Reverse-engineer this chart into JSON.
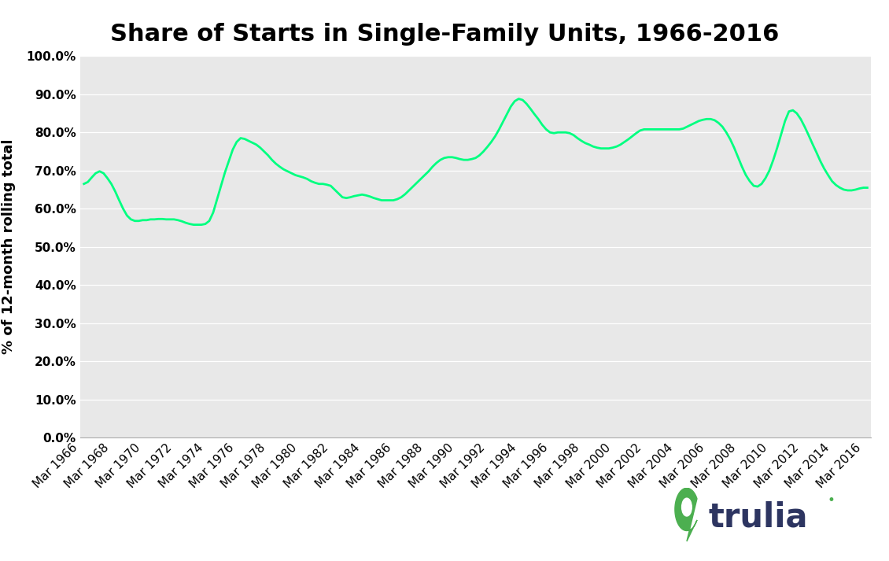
{
  "title": "Share of Starts in Single-Family Units, 1966-2016",
  "ylabel": "% of 12-month rolling total",
  "line_color": "#00ff80",
  "line_width": 2.0,
  "background_color": "#e8e8e8",
  "outer_background": "#ffffff",
  "ylim": [
    0.0,
    1.0
  ],
  "ytick_values": [
    0.0,
    0.1,
    0.2,
    0.3,
    0.4,
    0.5,
    0.6,
    0.7,
    0.8,
    0.9,
    1.0
  ],
  "xtick_years": [
    1966,
    1968,
    1970,
    1972,
    1974,
    1976,
    1978,
    1980,
    1982,
    1984,
    1986,
    1988,
    1990,
    1992,
    1994,
    1996,
    1998,
    2000,
    2002,
    2004,
    2006,
    2008,
    2010,
    2012,
    2014,
    2016
  ],
  "title_fontsize": 22,
  "axis_label_fontsize": 13,
  "tick_fontsize": 11,
  "trulia_text": "trulia",
  "trulia_text_color": "#2d3561",
  "trulia_icon_color": "#4caf50",
  "data_years": [
    1966.25,
    1966.5,
    1966.75,
    1967.0,
    1967.25,
    1967.5,
    1967.75,
    1968.0,
    1968.25,
    1968.5,
    1968.75,
    1969.0,
    1969.25,
    1969.5,
    1969.75,
    1970.0,
    1970.25,
    1970.5,
    1970.75,
    1971.0,
    1971.25,
    1971.5,
    1971.75,
    1972.0,
    1972.25,
    1972.5,
    1972.75,
    1973.0,
    1973.25,
    1973.5,
    1973.75,
    1974.0,
    1974.25,
    1974.5,
    1974.75,
    1975.0,
    1975.25,
    1975.5,
    1975.75,
    1976.0,
    1976.25,
    1976.5,
    1976.75,
    1977.0,
    1977.25,
    1977.5,
    1977.75,
    1978.0,
    1978.25,
    1978.5,
    1978.75,
    1979.0,
    1979.25,
    1979.5,
    1979.75,
    1980.0,
    1980.25,
    1980.5,
    1980.75,
    1981.0,
    1981.25,
    1981.5,
    1981.75,
    1982.0,
    1982.25,
    1982.5,
    1982.75,
    1983.0,
    1983.25,
    1983.5,
    1983.75,
    1984.0,
    1984.25,
    1984.5,
    1984.75,
    1985.0,
    1985.25,
    1985.5,
    1985.75,
    1986.0,
    1986.25,
    1986.5,
    1986.75,
    1987.0,
    1987.25,
    1987.5,
    1987.75,
    1988.0,
    1988.25,
    1988.5,
    1988.75,
    1989.0,
    1989.25,
    1989.5,
    1989.75,
    1990.0,
    1990.25,
    1990.5,
    1990.75,
    1991.0,
    1991.25,
    1991.5,
    1991.75,
    1992.0,
    1992.25,
    1992.5,
    1992.75,
    1993.0,
    1993.25,
    1993.5,
    1993.75,
    1994.0,
    1994.25,
    1994.5,
    1994.75,
    1995.0,
    1995.25,
    1995.5,
    1995.75,
    1996.0,
    1996.25,
    1996.5,
    1996.75,
    1997.0,
    1997.25,
    1997.5,
    1997.75,
    1998.0,
    1998.25,
    1998.5,
    1998.75,
    1999.0,
    1999.25,
    1999.5,
    1999.75,
    2000.0,
    2000.25,
    2000.5,
    2000.75,
    2001.0,
    2001.25,
    2001.5,
    2001.75,
    2002.0,
    2002.25,
    2002.5,
    2002.75,
    2003.0,
    2003.25,
    2003.5,
    2003.75,
    2004.0,
    2004.25,
    2004.5,
    2004.75,
    2005.0,
    2005.25,
    2005.5,
    2005.75,
    2006.0,
    2006.25,
    2006.5,
    2006.75,
    2007.0,
    2007.25,
    2007.5,
    2007.75,
    2008.0,
    2008.25,
    2008.5,
    2008.75,
    2009.0,
    2009.25,
    2009.5,
    2009.75,
    2010.0,
    2010.25,
    2010.5,
    2010.75,
    2011.0,
    2011.25,
    2011.5,
    2011.75,
    2012.0,
    2012.25,
    2012.5,
    2012.75,
    2013.0,
    2013.25,
    2013.5,
    2013.75,
    2014.0,
    2014.25,
    2014.5,
    2014.75,
    2015.0,
    2015.25,
    2015.5,
    2015.75,
    2016.0,
    2016.25
  ],
  "data_values": [
    0.665,
    0.67,
    0.682,
    0.693,
    0.698,
    0.693,
    0.68,
    0.665,
    0.645,
    0.622,
    0.6,
    0.582,
    0.572,
    0.568,
    0.568,
    0.57,
    0.57,
    0.572,
    0.572,
    0.573,
    0.573,
    0.572,
    0.572,
    0.572,
    0.57,
    0.567,
    0.563,
    0.56,
    0.558,
    0.558,
    0.558,
    0.56,
    0.568,
    0.59,
    0.625,
    0.66,
    0.695,
    0.725,
    0.755,
    0.775,
    0.785,
    0.783,
    0.778,
    0.773,
    0.768,
    0.76,
    0.75,
    0.74,
    0.728,
    0.718,
    0.71,
    0.703,
    0.698,
    0.693,
    0.688,
    0.685,
    0.682,
    0.678,
    0.672,
    0.668,
    0.665,
    0.665,
    0.663,
    0.66,
    0.65,
    0.64,
    0.63,
    0.628,
    0.63,
    0.633,
    0.635,
    0.637,
    0.635,
    0.632,
    0.628,
    0.625,
    0.622,
    0.622,
    0.622,
    0.622,
    0.625,
    0.63,
    0.638,
    0.648,
    0.658,
    0.668,
    0.678,
    0.688,
    0.698,
    0.71,
    0.72,
    0.728,
    0.733,
    0.735,
    0.735,
    0.733,
    0.73,
    0.728,
    0.728,
    0.73,
    0.733,
    0.74,
    0.75,
    0.762,
    0.775,
    0.79,
    0.808,
    0.828,
    0.848,
    0.868,
    0.882,
    0.888,
    0.885,
    0.875,
    0.862,
    0.848,
    0.835,
    0.82,
    0.808,
    0.8,
    0.798,
    0.8,
    0.8,
    0.8,
    0.798,
    0.793,
    0.785,
    0.778,
    0.772,
    0.768,
    0.763,
    0.76,
    0.758,
    0.758,
    0.758,
    0.76,
    0.763,
    0.768,
    0.775,
    0.782,
    0.79,
    0.798,
    0.805,
    0.808,
    0.808,
    0.808,
    0.808,
    0.808,
    0.808,
    0.808,
    0.808,
    0.808,
    0.808,
    0.81,
    0.815,
    0.82,
    0.825,
    0.83,
    0.833,
    0.835,
    0.835,
    0.832,
    0.825,
    0.815,
    0.8,
    0.782,
    0.76,
    0.735,
    0.71,
    0.688,
    0.672,
    0.66,
    0.658,
    0.665,
    0.68,
    0.7,
    0.728,
    0.76,
    0.795,
    0.83,
    0.855,
    0.858,
    0.85,
    0.835,
    0.815,
    0.793,
    0.77,
    0.748,
    0.725,
    0.705,
    0.688,
    0.672,
    0.662,
    0.655,
    0.65,
    0.648,
    0.648,
    0.65,
    0.653,
    0.655,
    0.655
  ]
}
